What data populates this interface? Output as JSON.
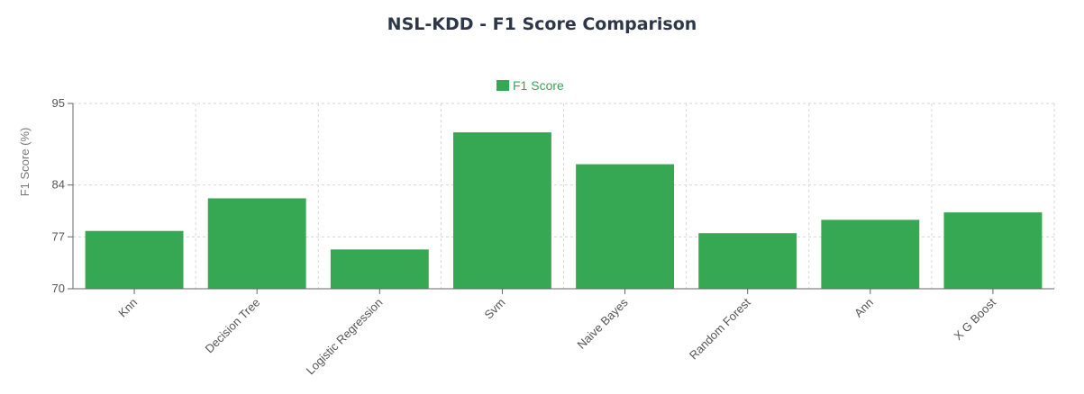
{
  "chart_data": {
    "type": "bar",
    "title": "NSL-KDD - F1 Score Comparison",
    "xlabel": "",
    "ylabel": "F1 Score (%)",
    "categories": [
      "Knn",
      "Decision Tree",
      "Logistic Regression",
      "Svm",
      "Naive Bayes",
      "Random Forest",
      "Ann",
      "X G Boost"
    ],
    "series": [
      {
        "name": "F1 Score",
        "values": [
          77.8,
          82.2,
          75.3,
          91.1,
          86.8,
          77.5,
          79.3,
          80.3
        ]
      }
    ],
    "ylim": [
      70,
      95
    ],
    "yticks": [
      70,
      77,
      84,
      95
    ],
    "grid": true,
    "legend": "top-center",
    "bar_color": "#36a853"
  }
}
